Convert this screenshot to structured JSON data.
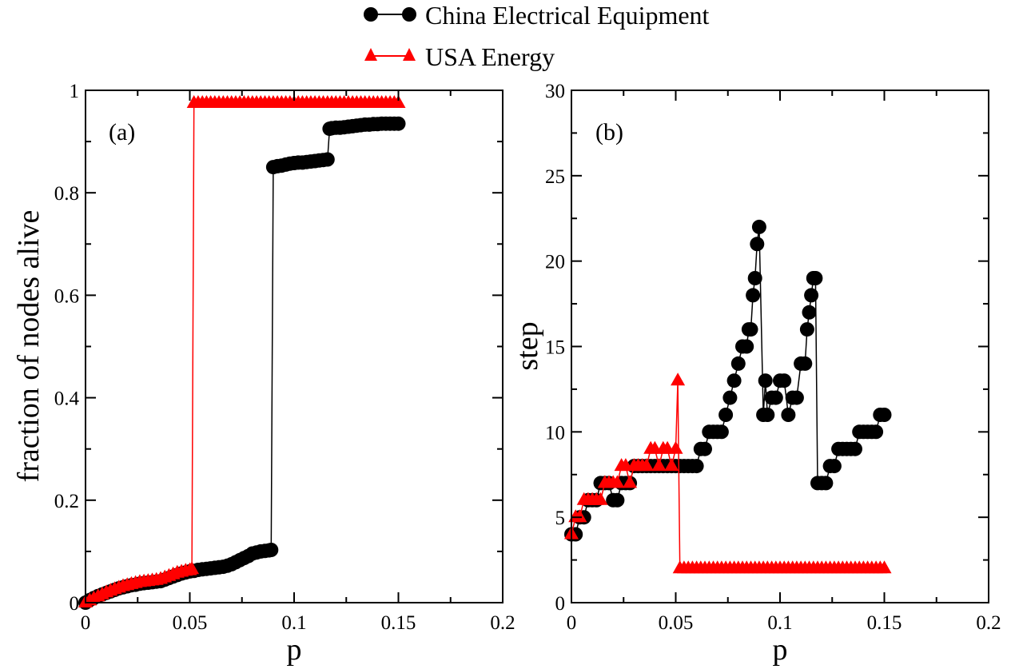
{
  "legend": {
    "items": [
      {
        "label": "China Electrical Equipment",
        "color": "#000000",
        "marker": "circle"
      },
      {
        "label": "USA Energy",
        "color": "#ff0000",
        "marker": "triangle"
      }
    ]
  },
  "chart_data": [
    {
      "type": "line",
      "panel_label": "(a)",
      "xlabel": "p",
      "ylabel": "fraction of nodes alive",
      "xlim": [
        0,
        0.2
      ],
      "ylim": [
        0,
        1
      ],
      "xticks": [
        0,
        0.05,
        0.1,
        0.15,
        0.2
      ],
      "xtick_labels": [
        "0",
        "0.05",
        "0.1",
        "0.15",
        "0.2"
      ],
      "yticks": [
        0,
        0.2,
        0.4,
        0.6,
        0.8,
        1
      ],
      "ytick_labels": [
        "0",
        "0.2",
        "0.4",
        "0.6",
        "0.8",
        "1"
      ],
      "grid": false,
      "series": [
        {
          "name": "China Electrical Equipment",
          "color": "#000000",
          "marker": "circle",
          "x": [
            0,
            0.002,
            0.004,
            0.006,
            0.008,
            0.01,
            0.012,
            0.014,
            0.016,
            0.018,
            0.02,
            0.022,
            0.024,
            0.026,
            0.028,
            0.03,
            0.032,
            0.034,
            0.036,
            0.038,
            0.04,
            0.042,
            0.044,
            0.046,
            0.048,
            0.05,
            0.052,
            0.054,
            0.056,
            0.058,
            0.06,
            0.062,
            0.064,
            0.066,
            0.068,
            0.07,
            0.072,
            0.074,
            0.076,
            0.078,
            0.08,
            0.082,
            0.084,
            0.086,
            0.088,
            0.089,
            0.09,
            0.092,
            0.094,
            0.096,
            0.098,
            0.1,
            0.102,
            0.104,
            0.106,
            0.108,
            0.11,
            0.112,
            0.114,
            0.116,
            0.117,
            0.118,
            0.12,
            0.122,
            0.124,
            0.126,
            0.128,
            0.13,
            0.132,
            0.134,
            0.136,
            0.138,
            0.14,
            0.142,
            0.144,
            0.146,
            0.148,
            0.15
          ],
          "y": [
            0,
            0.005,
            0.009,
            0.013,
            0.016,
            0.019,
            0.022,
            0.025,
            0.028,
            0.03,
            0.032,
            0.034,
            0.035,
            0.037,
            0.038,
            0.039,
            0.04,
            0.041,
            0.042,
            0.045,
            0.048,
            0.051,
            0.054,
            0.057,
            0.059,
            0.061,
            0.062,
            0.064,
            0.065,
            0.066,
            0.067,
            0.068,
            0.069,
            0.07,
            0.072,
            0.075,
            0.079,
            0.083,
            0.087,
            0.091,
            0.096,
            0.098,
            0.1,
            0.101,
            0.102,
            0.103,
            0.85,
            0.852,
            0.853,
            0.855,
            0.857,
            0.858,
            0.859,
            0.859,
            0.86,
            0.861,
            0.862,
            0.863,
            0.864,
            0.865,
            0.925,
            0.926,
            0.927,
            0.927,
            0.928,
            0.929,
            0.93,
            0.931,
            0.932,
            0.933,
            0.933,
            0.934,
            0.934,
            0.935,
            0.935,
            0.935,
            0.935,
            0.935
          ]
        },
        {
          "name": "USA Energy",
          "color": "#ff0000",
          "marker": "triangle",
          "x": [
            0,
            0.002,
            0.004,
            0.006,
            0.008,
            0.01,
            0.012,
            0.014,
            0.016,
            0.018,
            0.02,
            0.022,
            0.024,
            0.026,
            0.028,
            0.03,
            0.032,
            0.034,
            0.036,
            0.038,
            0.04,
            0.042,
            0.044,
            0.046,
            0.048,
            0.05,
            0.051,
            0.052,
            0.054,
            0.056,
            0.058,
            0.06,
            0.062,
            0.064,
            0.066,
            0.068,
            0.07,
            0.072,
            0.074,
            0.076,
            0.078,
            0.08,
            0.082,
            0.084,
            0.086,
            0.088,
            0.09,
            0.092,
            0.094,
            0.096,
            0.098,
            0.1,
            0.102,
            0.104,
            0.106,
            0.108,
            0.11,
            0.112,
            0.114,
            0.116,
            0.118,
            0.12,
            0.122,
            0.124,
            0.126,
            0.128,
            0.13,
            0.132,
            0.134,
            0.136,
            0.138,
            0.14,
            0.142,
            0.144,
            0.146,
            0.148,
            0.15
          ],
          "y": [
            0,
            0.004,
            0.008,
            0.012,
            0.016,
            0.02,
            0.023,
            0.026,
            0.029,
            0.032,
            0.034,
            0.036,
            0.038,
            0.04,
            0.041,
            0.042,
            0.043,
            0.044,
            0.046,
            0.049,
            0.052,
            0.055,
            0.058,
            0.06,
            0.062,
            0.063,
            0.065,
            0.975,
            0.975,
            0.975,
            0.975,
            0.975,
            0.975,
            0.975,
            0.975,
            0.975,
            0.975,
            0.975,
            0.975,
            0.975,
            0.975,
            0.975,
            0.975,
            0.975,
            0.975,
            0.975,
            0.975,
            0.975,
            0.975,
            0.975,
            0.975,
            0.975,
            0.975,
            0.975,
            0.975,
            0.975,
            0.975,
            0.975,
            0.975,
            0.975,
            0.975,
            0.975,
            0.975,
            0.975,
            0.975,
            0.975,
            0.975,
            0.975,
            0.975,
            0.975,
            0.975,
            0.975,
            0.975,
            0.975,
            0.975,
            0.975,
            0.975
          ]
        }
      ]
    },
    {
      "type": "line",
      "panel_label": "(b)",
      "xlabel": "p",
      "ylabel": "step",
      "xlim": [
        0,
        0.2
      ],
      "ylim": [
        0,
        30
      ],
      "xticks": [
        0,
        0.05,
        0.1,
        0.15,
        0.2
      ],
      "xtick_labels": [
        "0",
        "0.05",
        "0.1",
        "0.15",
        "0.2"
      ],
      "yticks": [
        0,
        5,
        10,
        15,
        20,
        25,
        30
      ],
      "ytick_labels": [
        "0",
        "5",
        "10",
        "15",
        "20",
        "25",
        "30"
      ],
      "grid": false,
      "series": [
        {
          "name": "China Electrical Equipment",
          "color": "#000000",
          "marker": "circle",
          "x": [
            0,
            0.002,
            0.004,
            0.006,
            0.008,
            0.01,
            0.012,
            0.014,
            0.016,
            0.018,
            0.02,
            0.022,
            0.024,
            0.026,
            0.028,
            0.03,
            0.032,
            0.034,
            0.036,
            0.038,
            0.04,
            0.042,
            0.044,
            0.046,
            0.048,
            0.05,
            0.052,
            0.054,
            0.056,
            0.058,
            0.06,
            0.062,
            0.064,
            0.066,
            0.068,
            0.07,
            0.072,
            0.074,
            0.076,
            0.078,
            0.08,
            0.082,
            0.084,
            0.085,
            0.086,
            0.087,
            0.088,
            0.089,
            0.09,
            0.092,
            0.093,
            0.094,
            0.096,
            0.098,
            0.1,
            0.102,
            0.104,
            0.106,
            0.108,
            0.11,
            0.112,
            0.113,
            0.114,
            0.115,
            0.116,
            0.117,
            0.118,
            0.12,
            0.122,
            0.124,
            0.126,
            0.128,
            0.13,
            0.132,
            0.134,
            0.136,
            0.138,
            0.14,
            0.142,
            0.144,
            0.146,
            0.148,
            0.15
          ],
          "y": [
            4,
            4,
            5,
            5,
            6,
            6,
            6,
            7,
            7,
            7,
            6,
            6,
            7,
            7,
            7,
            8,
            8,
            8,
            8,
            8,
            8,
            8,
            8,
            8,
            8,
            8,
            8,
            8,
            8,
            8,
            8,
            9,
            9,
            10,
            10,
            10,
            10,
            11,
            12,
            13,
            14,
            15,
            15,
            16,
            16,
            18,
            19,
            21,
            22,
            11,
            13,
            11,
            12,
            12,
            13,
            13,
            11,
            12,
            12,
            14,
            14,
            16,
            17,
            18,
            19,
            19,
            7,
            7,
            7,
            8,
            8,
            9,
            9,
            9,
            9,
            9,
            10,
            10,
            10,
            10,
            10,
            11,
            11
          ]
        },
        {
          "name": "USA Energy",
          "color": "#ff0000",
          "marker": "triangle",
          "x": [
            0,
            0.002,
            0.004,
            0.006,
            0.008,
            0.01,
            0.012,
            0.014,
            0.016,
            0.018,
            0.02,
            0.022,
            0.024,
            0.026,
            0.028,
            0.03,
            0.032,
            0.034,
            0.036,
            0.038,
            0.04,
            0.042,
            0.044,
            0.046,
            0.048,
            0.05,
            0.051,
            0.052,
            0.054,
            0.056,
            0.058,
            0.06,
            0.062,
            0.064,
            0.066,
            0.068,
            0.07,
            0.072,
            0.074,
            0.076,
            0.078,
            0.08,
            0.082,
            0.084,
            0.086,
            0.088,
            0.09,
            0.092,
            0.094,
            0.096,
            0.098,
            0.1,
            0.102,
            0.104,
            0.106,
            0.108,
            0.11,
            0.112,
            0.114,
            0.116,
            0.118,
            0.12,
            0.122,
            0.124,
            0.126,
            0.128,
            0.13,
            0.132,
            0.134,
            0.136,
            0.138,
            0.14,
            0.142,
            0.144,
            0.146,
            0.148,
            0.15
          ],
          "y": [
            4,
            5,
            5,
            6,
            6,
            6,
            6,
            6,
            7,
            7,
            7,
            7,
            8,
            8,
            7,
            8,
            8,
            8,
            8,
            9,
            9,
            8,
            9,
            9,
            8,
            9,
            13,
            2,
            2,
            2,
            2,
            2,
            2,
            2,
            2,
            2,
            2,
            2,
            2,
            2,
            2,
            2,
            2,
            2,
            2,
            2,
            2,
            2,
            2,
            2,
            2,
            2,
            2,
            2,
            2,
            2,
            2,
            2,
            2,
            2,
            2,
            2,
            2,
            2,
            2,
            2,
            2,
            2,
            2,
            2,
            2,
            2,
            2,
            2,
            2,
            2,
            2
          ]
        }
      ]
    }
  ]
}
